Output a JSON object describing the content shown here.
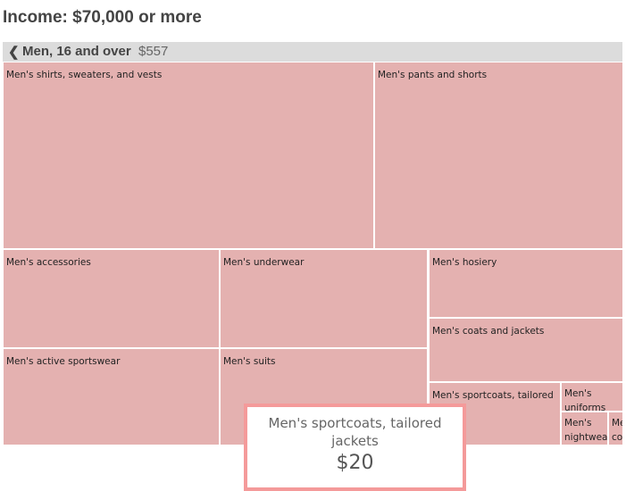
{
  "title": "Income: $70,000 or more",
  "breadcrumb": {
    "icon": "chevron-left-icon",
    "label": "Men, 16 and over",
    "value": "$557"
  },
  "colors": {
    "cell": "#e4b1b0",
    "breadcrumb_bg": "#dcdcdc",
    "tooltip_border": "#f49a9a"
  },
  "chart_data": {
    "type": "treemap",
    "parent": "Men, 16 and over",
    "total": "$557",
    "categories": [
      "Men's shirts, sweaters, and vests",
      "Men's pants and shorts",
      "Men's accessories",
      "Men's active sportswear",
      "Men's underwear",
      "Men's suits",
      "Men's hosiery",
      "Men's coats and jackets",
      "Men's sportcoats, tailored jackets",
      "Men's uniforms",
      "Men's nightwear",
      "Men's costumes"
    ]
  },
  "tooltip": {
    "name": "Men's sportcoats, tailored jackets",
    "value": "$20"
  }
}
